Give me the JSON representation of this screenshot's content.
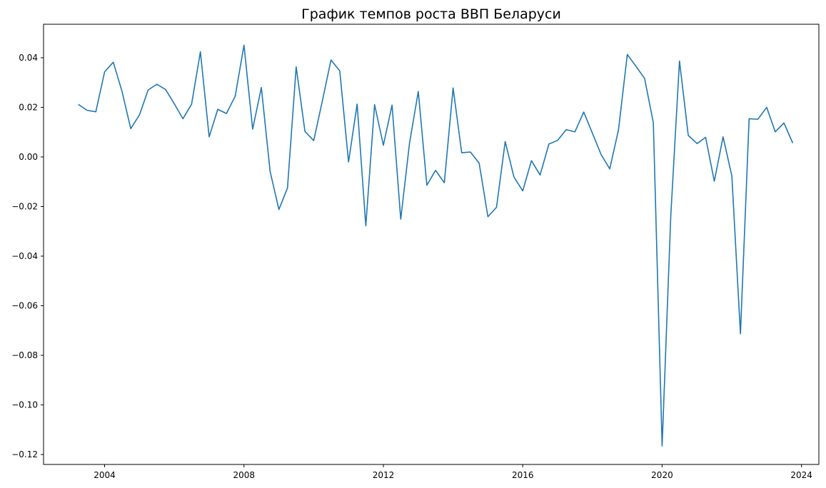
{
  "chart_data": {
    "type": "line",
    "title": "График темпов роста ВВП Беларуси",
    "xlabel": "",
    "ylabel": "",
    "x_axis_type": "date",
    "xlim": [
      "2002-04-01",
      "2024-07-01"
    ],
    "ylim": [
      -0.124,
      0.0535
    ],
    "x_ticks": [
      {
        "date": "2004-01-01",
        "label": "2004"
      },
      {
        "date": "2008-01-01",
        "label": "2008"
      },
      {
        "date": "2012-01-01",
        "label": "2012"
      },
      {
        "date": "2016-01-01",
        "label": "2016"
      },
      {
        "date": "2020-01-01",
        "label": "2020"
      },
      {
        "date": "2024-01-01",
        "label": "2024"
      }
    ],
    "y_ticks": [
      {
        "value": 0.04,
        "label": "0.04"
      },
      {
        "value": 0.02,
        "label": "0.02"
      },
      {
        "value": 0.0,
        "label": "0.00"
      },
      {
        "value": -0.02,
        "label": "−0.02"
      },
      {
        "value": -0.04,
        "label": "−0.04"
      },
      {
        "value": -0.06,
        "label": "−0.06"
      },
      {
        "value": -0.08,
        "label": "−0.08"
      },
      {
        "value": -0.1,
        "label": "−0.10"
      },
      {
        "value": -0.12,
        "label": "−0.12"
      }
    ],
    "grid": false,
    "legend": "none",
    "colors": {
      "line": "#1f77b4"
    },
    "series": [
      {
        "x": [
          "2003-04-01",
          "2003-07-01",
          "2003-10-01",
          "2004-01-01",
          "2004-04-01",
          "2004-07-01",
          "2004-10-01",
          "2005-01-01",
          "2005-04-01",
          "2005-07-01",
          "2005-10-01",
          "2006-01-01",
          "2006-04-01",
          "2006-07-01",
          "2006-10-01",
          "2007-01-01",
          "2007-04-01",
          "2007-07-01",
          "2007-10-01",
          "2008-01-01",
          "2008-04-01",
          "2008-07-01",
          "2008-10-01",
          "2009-01-01",
          "2009-04-01",
          "2009-07-01",
          "2009-10-01",
          "2010-01-01",
          "2010-04-01",
          "2010-07-01",
          "2010-10-01",
          "2011-01-01",
          "2011-04-01",
          "2011-07-01",
          "2011-10-01",
          "2012-01-01",
          "2012-04-01",
          "2012-07-01",
          "2012-10-01",
          "2013-01-01",
          "2013-04-01",
          "2013-07-01",
          "2013-10-01",
          "2014-01-01",
          "2014-04-01",
          "2014-07-01",
          "2014-10-01",
          "2015-01-01",
          "2015-04-01",
          "2015-07-01",
          "2015-10-01",
          "2016-01-01",
          "2016-04-01",
          "2016-07-01",
          "2016-10-01",
          "2017-01-01",
          "2017-04-01",
          "2017-07-01",
          "2017-10-01",
          "2018-01-01",
          "2018-04-01",
          "2018-07-01",
          "2018-10-01",
          "2019-01-01",
          "2019-04-01",
          "2019-07-01",
          "2019-10-01",
          "2020-01-01",
          "2020-04-01",
          "2020-07-01",
          "2020-10-01",
          "2021-01-01",
          "2021-04-01",
          "2021-07-01",
          "2021-10-01",
          "2022-01-01",
          "2022-04-01",
          "2022-07-01",
          "2022-10-01",
          "2023-01-01",
          "2023-04-01",
          "2023-07-01",
          "2023-10-01"
        ],
        "values": [
          0.0212,
          0.0188,
          0.0182,
          0.0343,
          0.0382,
          0.0265,
          0.0114,
          0.017,
          0.027,
          0.0293,
          0.0272,
          0.0214,
          0.0154,
          0.0213,
          0.0424,
          0.0081,
          0.0192,
          0.0175,
          0.0245,
          0.0451,
          0.0112,
          0.028,
          -0.0059,
          -0.0212,
          -0.0125,
          0.0363,
          0.0103,
          0.0066,
          0.0225,
          0.0391,
          0.0347,
          -0.002,
          0.0213,
          -0.0278,
          0.0211,
          0.0047,
          0.0209,
          -0.0251,
          0.0055,
          0.0264,
          -0.0114,
          -0.0054,
          -0.0104,
          0.0278,
          0.0017,
          0.002,
          -0.0025,
          -0.0241,
          -0.0203,
          0.0062,
          -0.0081,
          -0.0137,
          -0.0015,
          -0.0073,
          0.0052,
          0.0067,
          0.011,
          0.0101,
          0.0181,
          0.0095,
          0.001,
          -0.0048,
          0.011,
          0.0413,
          0.0366,
          0.0317,
          0.0138,
          -0.1165,
          -0.0236,
          0.0387,
          0.0087,
          0.0054,
          0.0079,
          -0.0098,
          0.0081,
          -0.0077,
          -0.0713,
          0.0154,
          0.0152,
          0.02,
          0.0101,
          0.0137,
          0.0056
        ]
      }
    ]
  }
}
